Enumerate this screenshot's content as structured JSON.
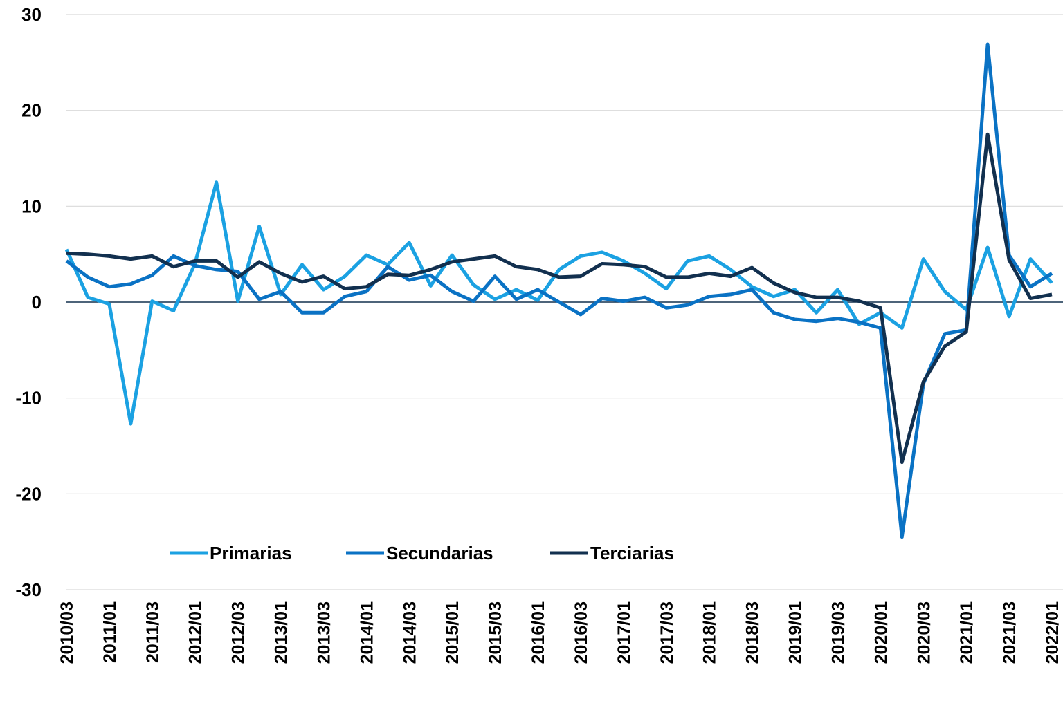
{
  "chart_data": {
    "type": "line",
    "categories": [
      "2010/03",
      null,
      "2011/01",
      null,
      "2011/03",
      null,
      "2012/01",
      null,
      "2012/03",
      null,
      "2013/01",
      null,
      "2013/03",
      null,
      "2014/01",
      null,
      "2014/03",
      null,
      "2015/01",
      null,
      "2015/03",
      null,
      "2016/01",
      null,
      "2016/03",
      null,
      "2017/01",
      null,
      "2017/03",
      null,
      "2018/01",
      null,
      "2018/03",
      null,
      "2019/01",
      null,
      "2019/03",
      null,
      "2020/01",
      null,
      "2020/03",
      null,
      "2021/01",
      null,
      "2021/03",
      null,
      "2022/01"
    ],
    "series": [
      {
        "name": "Primarias",
        "color": "#1ba1e2",
        "values": [
          5.5,
          0.5,
          -0.2,
          -12.7,
          0.1,
          -0.9,
          4.0,
          12.5,
          0.1,
          7.9,
          0.8,
          3.9,
          1.3,
          2.7,
          4.9,
          3.9,
          6.2,
          1.7,
          4.9,
          1.8,
          0.3,
          1.3,
          0.2,
          3.4,
          4.8,
          5.2,
          4.3,
          3.0,
          1.4,
          4.3,
          4.8,
          3.4,
          1.6,
          0.6,
          1.3,
          -1.1,
          1.3,
          -2.3,
          -1.1,
          -2.7,
          4.5,
          1.1,
          -0.8,
          5.7,
          -1.5,
          4.5,
          2.0
        ]
      },
      {
        "name": "Secundarias",
        "color": "#0a72c4",
        "values": [
          4.3,
          2.6,
          1.6,
          1.9,
          2.8,
          4.8,
          3.8,
          3.4,
          3.2,
          0.3,
          1.1,
          -1.1,
          -1.1,
          0.6,
          1.1,
          3.7,
          2.3,
          2.8,
          1.1,
          0.1,
          2.7,
          0.3,
          1.3,
          0.0,
          -1.3,
          0.4,
          0.1,
          0.5,
          -0.6,
          -0.3,
          0.6,
          0.8,
          1.3,
          -1.1,
          -1.8,
          -2.0,
          -1.7,
          -2.1,
          -2.7,
          -24.5,
          -8.5,
          -3.3,
          -2.9,
          26.9,
          4.9,
          1.6,
          3.0
        ]
      },
      {
        "name": "Terciarias",
        "color": "#12304f",
        "values": [
          5.1,
          5.0,
          4.8,
          4.5,
          4.8,
          3.7,
          4.3,
          4.3,
          2.6,
          4.2,
          3.0,
          2.1,
          2.7,
          1.4,
          1.6,
          2.9,
          2.8,
          3.4,
          4.2,
          4.5,
          4.8,
          3.7,
          3.4,
          2.6,
          2.7,
          4.0,
          3.9,
          3.7,
          2.6,
          2.6,
          3.0,
          2.7,
          3.6,
          2.0,
          1.0,
          0.5,
          0.5,
          0.1,
          -0.6,
          -16.7,
          -8.3,
          -4.6,
          -3.1,
          17.5,
          4.4,
          0.4,
          0.8
        ]
      }
    ],
    "ylim": [
      -30,
      30
    ],
    "yticks": [
      -30,
      -20,
      -10,
      0,
      10,
      20,
      30
    ],
    "grid": true
  }
}
